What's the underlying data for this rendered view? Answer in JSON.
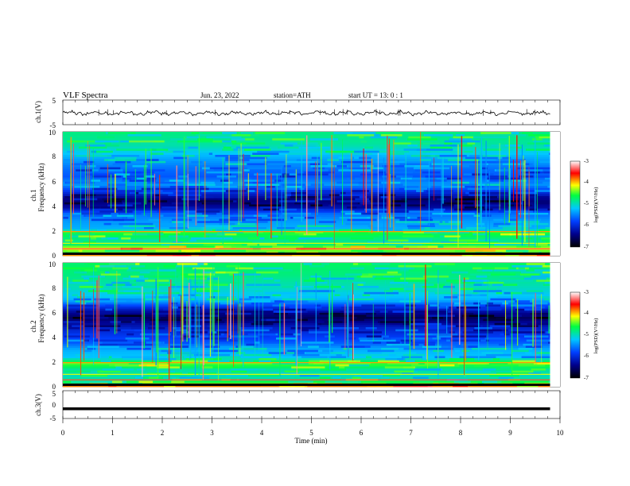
{
  "header": {
    "title": "VLF  Spectra",
    "date": "Jun. 23, 2022",
    "station": "station=ATH",
    "start": "start  UT  =   13: 0   : 1"
  },
  "chart_data": [
    {
      "type": "line",
      "panel": "ch1-waveform",
      "ylabel": "ch.1(V)",
      "ylim": [
        -5,
        5
      ],
      "yticks": [
        "5",
        "-5"
      ],
      "xlim": [
        0,
        10
      ],
      "x_extent": [
        0,
        9.8
      ],
      "series": [
        {
          "values_note_level": -0.3,
          "amplitude_range": [
            -1.4,
            1.4
          ]
        }
      ],
      "color": "#000000"
    },
    {
      "type": "heatmap",
      "panel": "ch1-spectrogram",
      "ylabel": "ch.1\nFrequency (kHz)",
      "ylim": [
        0,
        10
      ],
      "yticks": [
        "0",
        "2",
        "4",
        "6",
        "8",
        "10"
      ],
      "xlim": [
        0,
        10
      ],
      "x_extent": [
        0,
        9.8
      ],
      "colorbar": {
        "label": "log(PSD)(V²/Hz)",
        "range": [
          -7,
          -3
        ],
        "ticks": [
          "-3",
          "-4",
          "-5",
          "-6",
          "-7"
        ]
      },
      "frequency_profile_kHz": [
        [
          0.0,
          -3.6
        ],
        [
          0.3,
          -4.6
        ],
        [
          0.6,
          -4.1
        ],
        [
          1.0,
          -4.9
        ],
        [
          1.4,
          -4.8
        ],
        [
          1.9,
          -4.5
        ],
        [
          2.2,
          -5.3
        ],
        [
          2.8,
          -5.4
        ],
        [
          3.4,
          -5.6
        ],
        [
          3.9,
          -6.3
        ],
        [
          4.5,
          -6.5
        ],
        [
          5.1,
          -6.0
        ],
        [
          5.8,
          -5.4
        ],
        [
          6.4,
          -5.7
        ],
        [
          7.0,
          -5.6
        ],
        [
          8.0,
          -5.3
        ],
        [
          9.0,
          -4.9
        ],
        [
          10.0,
          -4.8
        ]
      ]
    },
    {
      "type": "heatmap",
      "panel": "ch2-spectrogram",
      "ylabel": "ch.2\nFrequency (kHz)",
      "ylim": [
        0,
        10
      ],
      "yticks": [
        "0",
        "2",
        "4",
        "6",
        "8",
        "10"
      ],
      "xlim": [
        0,
        10
      ],
      "x_extent": [
        0,
        9.8
      ],
      "colorbar": {
        "label": "log(PSD)(V²/Hz)",
        "range": [
          -7,
          -3
        ],
        "ticks": [
          "-3",
          "-4",
          "-5",
          "-6",
          "-7"
        ]
      },
      "frequency_profile_kHz": [
        [
          0.0,
          -3.6
        ],
        [
          0.3,
          -4.5
        ],
        [
          0.8,
          -5.0
        ],
        [
          1.4,
          -4.9
        ],
        [
          1.9,
          -4.4
        ],
        [
          2.4,
          -5.2
        ],
        [
          3.0,
          -5.3
        ],
        [
          3.6,
          -5.7
        ],
        [
          4.2,
          -5.9
        ],
        [
          4.8,
          -6.1
        ],
        [
          5.6,
          -6.6
        ],
        [
          6.2,
          -6.2
        ],
        [
          7.0,
          -5.3
        ],
        [
          8.0,
          -5.0
        ],
        [
          9.0,
          -4.8
        ],
        [
          10.0,
          -4.7
        ]
      ]
    },
    {
      "type": "line",
      "panel": "ch3-waveform",
      "ylabel": "ch.3(V)",
      "ylim": [
        -5,
        5
      ],
      "yticks": [
        "5",
        "0",
        "-5"
      ],
      "xlim": [
        0,
        10
      ],
      "x_extent": [
        0,
        9.8
      ],
      "series": [
        {
          "constant_value": -1.5
        }
      ],
      "xlabel": "Time  (min)",
      "xticks": [
        "0",
        "1",
        "2",
        "3",
        "4",
        "5",
        "6",
        "7",
        "8",
        "9",
        "10"
      ],
      "color": "#000000"
    }
  ]
}
